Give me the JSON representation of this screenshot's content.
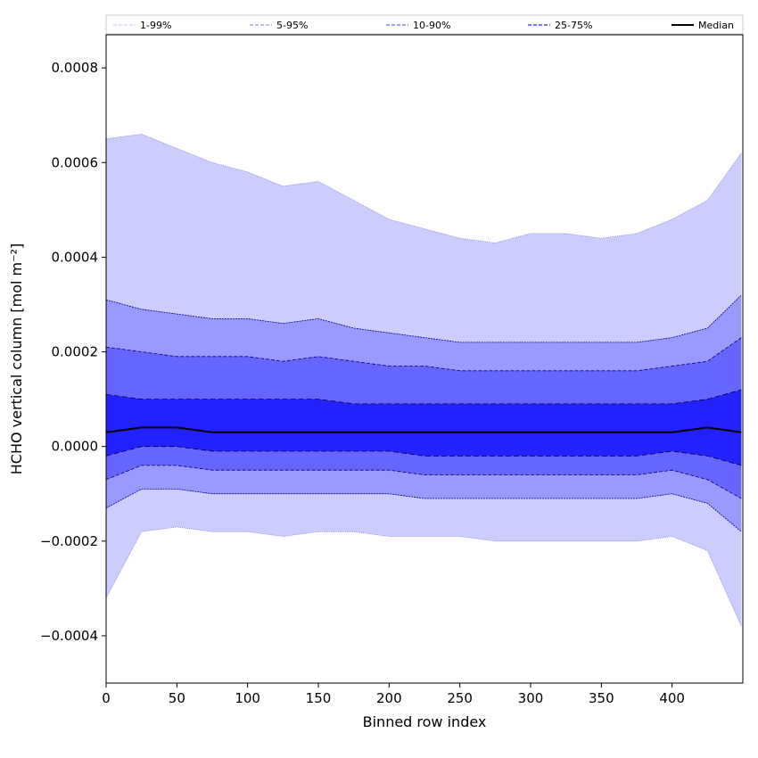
{
  "chart_data": {
    "type": "area",
    "xlabel": "Binned row index",
    "ylabel": "HCHO vertical column [mol m⁻²]",
    "xlim": [
      0,
      450
    ],
    "ylim": [
      -0.0005,
      0.00087
    ],
    "x_ticks": [
      0,
      50,
      100,
      150,
      200,
      250,
      300,
      350,
      400
    ],
    "x_tick_labels": [
      "0",
      "50",
      "100",
      "150",
      "200",
      "250",
      "300",
      "350",
      "400"
    ],
    "y_ticks": [
      -0.0004,
      -0.0002,
      0.0,
      0.0002,
      0.0004,
      0.0006,
      0.0008
    ],
    "y_tick_labels": [
      "−0.0004",
      "−0.0002",
      "0.0000",
      "0.0002",
      "0.0004",
      "0.0006",
      "0.0008"
    ],
    "grid": false,
    "legend_position": "top",
    "legend": [
      {
        "label": "1-99%",
        "color": "#ccccff"
      },
      {
        "label": "5-95%",
        "color": "#9999ff"
      },
      {
        "label": "10-90%",
        "color": "#6666ff"
      },
      {
        "label": "25-75%",
        "color": "#2222ff"
      },
      {
        "label": "Median",
        "color": "#000000"
      }
    ],
    "x": [
      0,
      25,
      50,
      75,
      100,
      125,
      150,
      175,
      200,
      225,
      250,
      275,
      300,
      325,
      350,
      375,
      400,
      425,
      449
    ],
    "series": [
      {
        "name": "1-99%",
        "band": "upper",
        "color": "#ccccff",
        "values": [
          0.00065,
          0.00066,
          0.00063,
          0.0006,
          0.00058,
          0.00055,
          0.00056,
          0.00052,
          0.00048,
          0.00046,
          0.00044,
          0.00043,
          0.00045,
          0.00045,
          0.00044,
          0.00045,
          0.00048,
          0.00052,
          0.00062
        ]
      },
      {
        "name": "1-99%",
        "band": "lower",
        "color": "#ccccff",
        "values": [
          -0.00032,
          -0.00018,
          -0.00017,
          -0.00018,
          -0.00018,
          -0.00019,
          -0.00018,
          -0.00018,
          -0.00019,
          -0.00019,
          -0.00019,
          -0.0002,
          -0.0002,
          -0.0002,
          -0.0002,
          -0.0002,
          -0.00019,
          -0.00022,
          -0.00038
        ]
      },
      {
        "name": "5-95%",
        "band": "upper",
        "color": "#9999ff",
        "values": [
          0.00031,
          0.00029,
          0.00028,
          0.00027,
          0.00027,
          0.00026,
          0.00027,
          0.00025,
          0.00024,
          0.00023,
          0.00022,
          0.00022,
          0.00022,
          0.00022,
          0.00022,
          0.00022,
          0.00023,
          0.00025,
          0.00032
        ]
      },
      {
        "name": "5-95%",
        "band": "lower",
        "color": "#9999ff",
        "values": [
          -0.00013,
          -9e-05,
          -9e-05,
          -0.0001,
          -0.0001,
          -0.0001,
          -0.0001,
          -0.0001,
          -0.0001,
          -0.00011,
          -0.00011,
          -0.00011,
          -0.00011,
          -0.00011,
          -0.00011,
          -0.00011,
          -0.0001,
          -0.00012,
          -0.00018
        ]
      },
      {
        "name": "10-90%",
        "band": "upper",
        "color": "#6666ff",
        "values": [
          0.00021,
          0.0002,
          0.00019,
          0.00019,
          0.00019,
          0.00018,
          0.00019,
          0.00018,
          0.00017,
          0.00017,
          0.00016,
          0.00016,
          0.00016,
          0.00016,
          0.00016,
          0.00016,
          0.00017,
          0.00018,
          0.00023
        ]
      },
      {
        "name": "10-90%",
        "band": "lower",
        "color": "#6666ff",
        "values": [
          -7e-05,
          -4e-05,
          -4e-05,
          -5e-05,
          -5e-05,
          -5e-05,
          -5e-05,
          -5e-05,
          -5e-05,
          -6e-05,
          -6e-05,
          -6e-05,
          -6e-05,
          -6e-05,
          -6e-05,
          -6e-05,
          -5e-05,
          -7e-05,
          -0.00011
        ]
      },
      {
        "name": "25-75%",
        "band": "upper",
        "color": "#2222ff",
        "values": [
          0.00011,
          0.0001,
          0.0001,
          0.0001,
          0.0001,
          0.0001,
          0.0001,
          9e-05,
          9e-05,
          9e-05,
          9e-05,
          9e-05,
          9e-05,
          9e-05,
          9e-05,
          9e-05,
          9e-05,
          0.0001,
          0.00012
        ]
      },
      {
        "name": "25-75%",
        "band": "lower",
        "color": "#2222ff",
        "values": [
          -2e-05,
          0.0,
          0.0,
          -1e-05,
          -1e-05,
          -1e-05,
          -1e-05,
          -1e-05,
          -1e-05,
          -2e-05,
          -2e-05,
          -2e-05,
          -2e-05,
          -2e-05,
          -2e-05,
          -2e-05,
          -1e-05,
          -2e-05,
          -4e-05
        ]
      },
      {
        "name": "Median",
        "color": "#000000",
        "values": [
          3e-05,
          4e-05,
          4e-05,
          3e-05,
          3e-05,
          3e-05,
          3e-05,
          3e-05,
          3e-05,
          3e-05,
          3e-05,
          3e-05,
          3e-05,
          3e-05,
          3e-05,
          3e-05,
          3e-05,
          4e-05,
          3e-05
        ]
      }
    ]
  }
}
